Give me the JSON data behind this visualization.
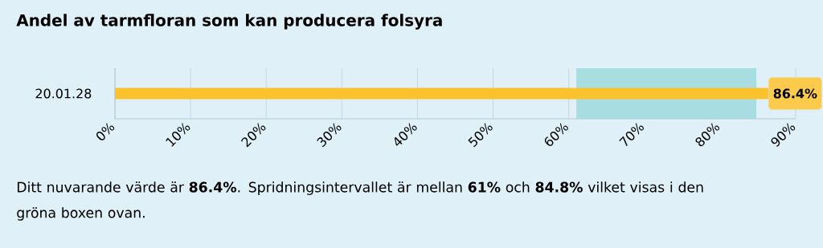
{
  "chart_data": {
    "type": "bar",
    "orientation": "horizontal",
    "title": "Andel av tarmfloran som kan producera folsyra",
    "categories": [
      "20.01.28"
    ],
    "values": [
      86.4
    ],
    "color": "#fcc22d",
    "value_labels": [
      "86.4%"
    ],
    "xlim": [
      0,
      90
    ],
    "xticks": [
      {
        "value": 0,
        "label": "0%"
      },
      {
        "value": 10,
        "label": "10%"
      },
      {
        "value": 20,
        "label": "20%"
      },
      {
        "value": 30,
        "label": "30%"
      },
      {
        "value": 40,
        "label": "40%"
      },
      {
        "value": 50,
        "label": "50%"
      },
      {
        "value": 60,
        "label": "60%"
      },
      {
        "value": 70,
        "label": "70%"
      },
      {
        "value": 80,
        "label": "80%"
      },
      {
        "value": 90,
        "label": "90%"
      }
    ],
    "grid": "x",
    "bands": [
      {
        "axis": "x",
        "from": 61,
        "to": 84.8,
        "color": "#a8dde1"
      }
    ],
    "annotations": [
      "Ditt nuvarande värde är **86.4%**. Spridningsintervallet är mellan **61%** och **84.8%** vilket visas i den gröna boxen ovan."
    ]
  }
}
